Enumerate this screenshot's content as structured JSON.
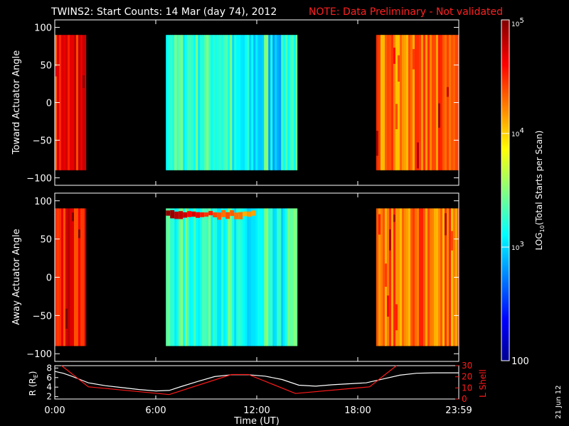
{
  "title": {
    "main": "TWINS2: Start Counts: 14 Mar (day  74), 2012",
    "note": "NOTE: Data Preliminary - Not validated"
  },
  "date_stamp": "21 Jun 12",
  "colors": {
    "background": "#000000",
    "axis": "#ffffff",
    "note": "#ff2020",
    "lshell": "#ff1a1a",
    "radius": "#ffffff",
    "data_gap": "#000000"
  },
  "chart_data": [
    {
      "type": "heatmap",
      "id": "toward",
      "ylabel": "Toward Actuator Angle",
      "ylim": [
        -110,
        110
      ],
      "yticks": [
        -100,
        -50,
        0,
        50,
        100
      ],
      "data_y_range": [
        -90,
        90
      ],
      "xlim": [
        0,
        24
      ],
      "xticks": [
        0,
        6,
        12,
        18,
        24
      ],
      "data_segments_hours": [
        [
          0,
          1.85
        ],
        [
          6.6,
          14.4
        ],
        [
          19.1,
          24
        ]
      ],
      "typical_log_counts": {
        "segment1": 4.6,
        "segment2": 3.3,
        "segment3": 4.3
      }
    },
    {
      "type": "heatmap",
      "id": "away",
      "ylabel": "Away Actuator Angle",
      "ylim": [
        -110,
        110
      ],
      "yticks": [
        -100,
        -50,
        0,
        50,
        100
      ],
      "data_y_range": [
        -90,
        90
      ],
      "xlim": [
        0,
        24
      ],
      "xticks": [
        0,
        6,
        12,
        18,
        24
      ],
      "data_segments_hours": [
        [
          0,
          1.85
        ],
        [
          6.6,
          14.4
        ],
        [
          19.1,
          24
        ]
      ],
      "typical_log_counts": {
        "segment1": 4.6,
        "segment2": 3.3,
        "segment3": 4.3
      }
    },
    {
      "type": "line",
      "id": "orbit",
      "xlabel": "Time (UT)",
      "xlim": [
        0,
        24
      ],
      "xtick_labels": [
        "0:00",
        "6:00",
        "12:00",
        "18:00",
        "23:59"
      ],
      "xticks": [
        0,
        6,
        12,
        18,
        24
      ],
      "ylabel_left": "R (R",
      "ylabel_left_sub": "E",
      "ylabel_left_close": ")",
      "ylim_left": [
        1.5,
        8.5
      ],
      "yticks_left": [
        2,
        4,
        6,
        8
      ],
      "ylabel_right": "L Shell",
      "ylim_right": [
        0,
        30
      ],
      "yticks_right": [
        0,
        10,
        20,
        30
      ],
      "series": [
        {
          "axis": "left",
          "x": [
            0,
            0.5,
            1,
            1.5,
            2,
            3,
            4,
            5,
            6,
            6.8,
            7.5,
            8.5,
            9.5,
            10.5,
            11.5,
            12.5,
            13.5,
            14.5,
            15.5,
            16.5,
            17.5,
            18.5,
            19.5,
            20.5,
            21.5,
            22.5,
            23.5,
            24
          ],
          "values": [
            7.3,
            6.9,
            6.3,
            5.6,
            4.9,
            4.3,
            3.9,
            3.5,
            3.2,
            3.3,
            4.1,
            5.2,
            6.2,
            6.6,
            6.6,
            6.3,
            5.6,
            4.4,
            4.2,
            4.5,
            4.7,
            4.9,
            5.7,
            6.5,
            6.9,
            7.0,
            7.0,
            7.0
          ]
        },
        {
          "axis": "right",
          "x": [
            0.4,
            2,
            6.8,
            10.5,
            11.5,
            14.3,
            18.7,
            20.3
          ],
          "values": [
            30,
            11,
            4,
            22,
            22,
            5,
            11,
            30
          ]
        }
      ]
    },
    {
      "type": "colorbar",
      "id": "colorbar",
      "label_pre": "LOG",
      "label_sub": "10",
      "label_post": "(Total Starts per Scan)",
      "range_log": [
        2,
        5
      ],
      "tick_labels": [
        "100",
        "10",
        "10",
        "10"
      ],
      "tick_exponents": [
        "",
        "3",
        "4",
        "5"
      ],
      "tick_values_log": [
        2,
        3,
        4,
        5
      ]
    }
  ]
}
